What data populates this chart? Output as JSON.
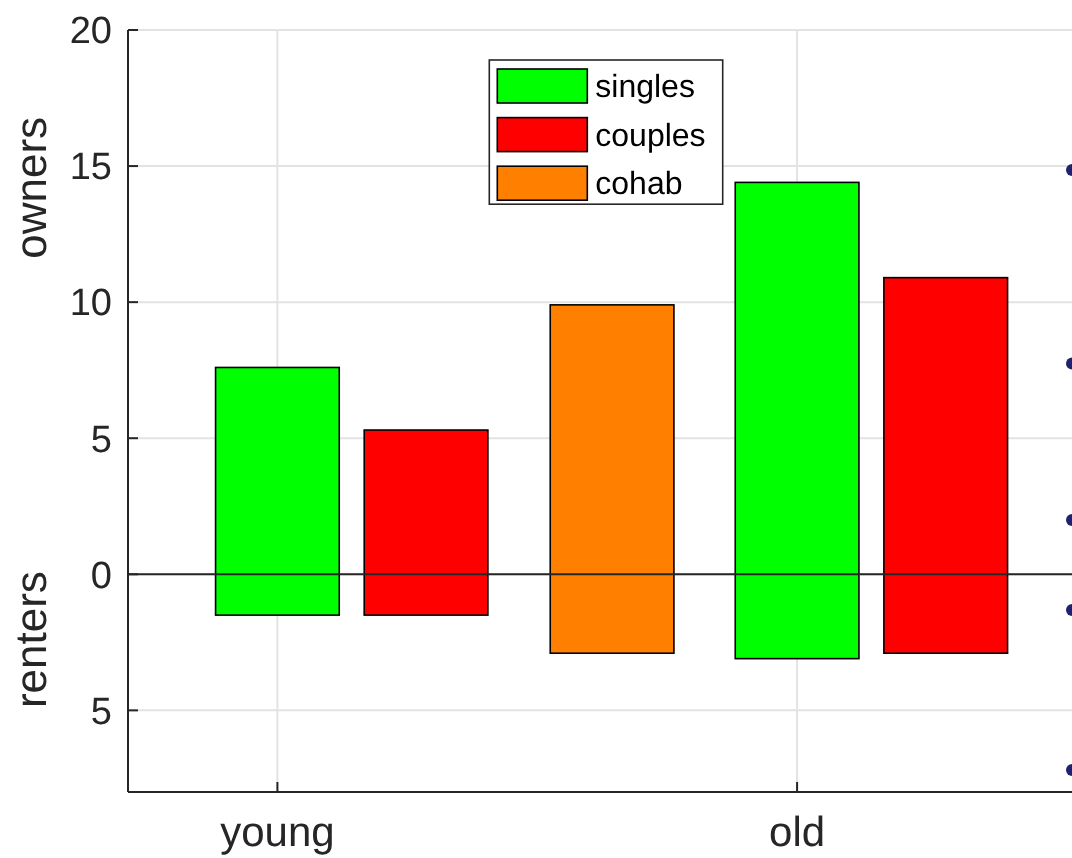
{
  "chart_data": {
    "type": "bar",
    "ylabel": "owners",
    "annotations": [
      "renters"
    ],
    "categories": [
      "young",
      "old"
    ],
    "ylim": [
      -8,
      20
    ],
    "yticks": [
      {
        "value": -5,
        "label": "5"
      },
      0,
      5,
      10,
      15,
      20
    ],
    "grid": true,
    "legend": "top",
    "ref_lines": [
      {
        "axis": "y",
        "value": 0,
        "color": "#262626"
      }
    ],
    "series": [
      {
        "name": "singles",
        "color": "#00ff00",
        "base": [
          -1.5,
          -3.1
        ],
        "values": [
          9.1,
          17.5
        ]
      },
      {
        "name": "couples",
        "color": "#ff0000",
        "base": [
          -1.5,
          -2.9
        ],
        "values": [
          6.8,
          13.8
        ]
      },
      {
        "name": "cohab",
        "color": "#ff8000",
        "base": [
          null,
          -2.9
        ],
        "values": [
          null,
          12.8
        ]
      }
    ]
  }
}
